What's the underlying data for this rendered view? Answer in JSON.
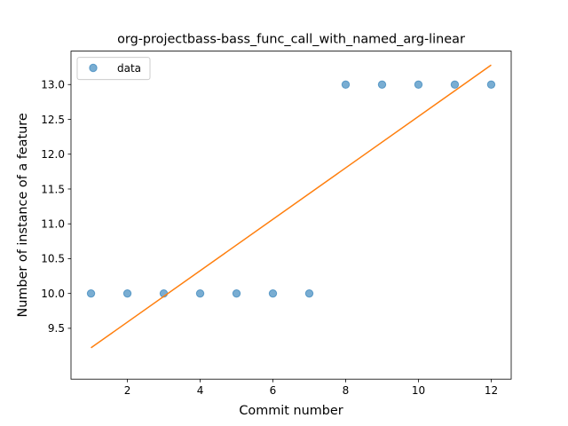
{
  "chart_data": {
    "type": "scatter",
    "title": "org-projectbass-bass_func_call_with_named_arg-linear",
    "xlabel": "Commit number",
    "ylabel": "Number of instance of a feature",
    "xlim": [
      0.45,
      12.55
    ],
    "ylim": [
      8.77,
      13.48
    ],
    "x_ticks": [
      2,
      4,
      6,
      8,
      10,
      12
    ],
    "y_ticks": [
      9.5,
      10.0,
      10.5,
      11.0,
      11.5,
      12.0,
      12.5,
      13.0
    ],
    "grid": false,
    "legend_position": "upper left",
    "series": [
      {
        "name": "data",
        "kind": "scatter",
        "color": "#1f77b4",
        "x": [
          1,
          2,
          3,
          4,
          5,
          6,
          7,
          8,
          9,
          10,
          11,
          12
        ],
        "y": [
          10,
          10,
          10,
          10,
          10,
          10,
          10,
          13,
          13,
          13,
          13,
          13
        ]
      },
      {
        "kind": "line",
        "color": "#ff7f0e",
        "x": [
          1,
          12
        ],
        "y": [
          9.22,
          13.28
        ]
      }
    ]
  }
}
